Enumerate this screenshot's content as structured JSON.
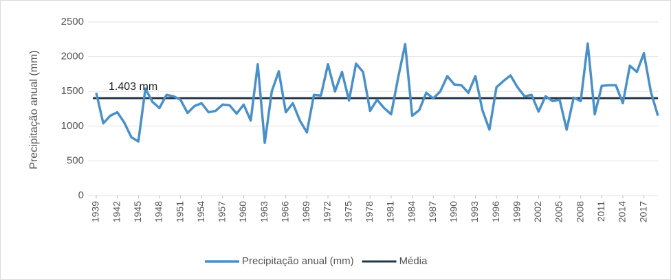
{
  "chart_data": {
    "type": "line",
    "y_label": "Precipitação anual (mm)",
    "x": [
      1939,
      1940,
      1941,
      1942,
      1943,
      1944,
      1945,
      1946,
      1947,
      1948,
      1949,
      1950,
      1951,
      1952,
      1953,
      1954,
      1955,
      1956,
      1957,
      1958,
      1959,
      1960,
      1961,
      1962,
      1963,
      1964,
      1965,
      1966,
      1967,
      1968,
      1969,
      1970,
      1971,
      1972,
      1973,
      1974,
      1975,
      1976,
      1977,
      1978,
      1979,
      1980,
      1981,
      1982,
      1983,
      1984,
      1985,
      1986,
      1987,
      1988,
      1989,
      1990,
      1991,
      1992,
      1993,
      1994,
      1995,
      1996,
      1997,
      1998,
      1999,
      2000,
      2001,
      2002,
      2003,
      2004,
      2005,
      2006,
      2007,
      2008,
      2009,
      2010,
      2011,
      2012,
      2013,
      2014,
      2015,
      2016,
      2017,
      2018,
      2019
    ],
    "series": [
      {
        "name": "Precipitação anual (mm)",
        "color": "#4a90c8",
        "values": [
          1480,
          1040,
          1150,
          1200,
          1050,
          840,
          780,
          1540,
          1350,
          1260,
          1450,
          1430,
          1380,
          1190,
          1290,
          1330,
          1200,
          1220,
          1310,
          1300,
          1180,
          1310,
          1080,
          1890,
          760,
          1500,
          1790,
          1200,
          1330,
          1080,
          910,
          1450,
          1440,
          1890,
          1500,
          1780,
          1370,
          1900,
          1780,
          1220,
          1380,
          1260,
          1170,
          1700,
          2180,
          1150,
          1230,
          1480,
          1400,
          1500,
          1720,
          1600,
          1590,
          1480,
          1720,
          1230,
          950,
          1560,
          1650,
          1730,
          1560,
          1430,
          1450,
          1210,
          1430,
          1360,
          1380,
          950,
          1410,
          1360,
          2190,
          1170,
          1580,
          1590,
          1590,
          1330,
          1870,
          1780,
          2050,
          1490,
          1150
        ]
      }
    ],
    "reference_line": {
      "name": "Média",
      "value": 1403,
      "label": "1.403 mm",
      "color": "#243447"
    },
    "xlim": [
      1939,
      2019
    ],
    "xticks": [
      1939,
      1942,
      1945,
      1948,
      1951,
      1954,
      1957,
      1960,
      1963,
      1966,
      1969,
      1972,
      1975,
      1978,
      1981,
      1984,
      1987,
      1990,
      1993,
      1996,
      1999,
      2002,
      2005,
      2008,
      2011,
      2014,
      2017
    ],
    "ylim": [
      0,
      2500
    ],
    "yticks": [
      0,
      500,
      1000,
      1500,
      2000,
      2500
    ],
    "grid": true,
    "legend": "bottom"
  }
}
